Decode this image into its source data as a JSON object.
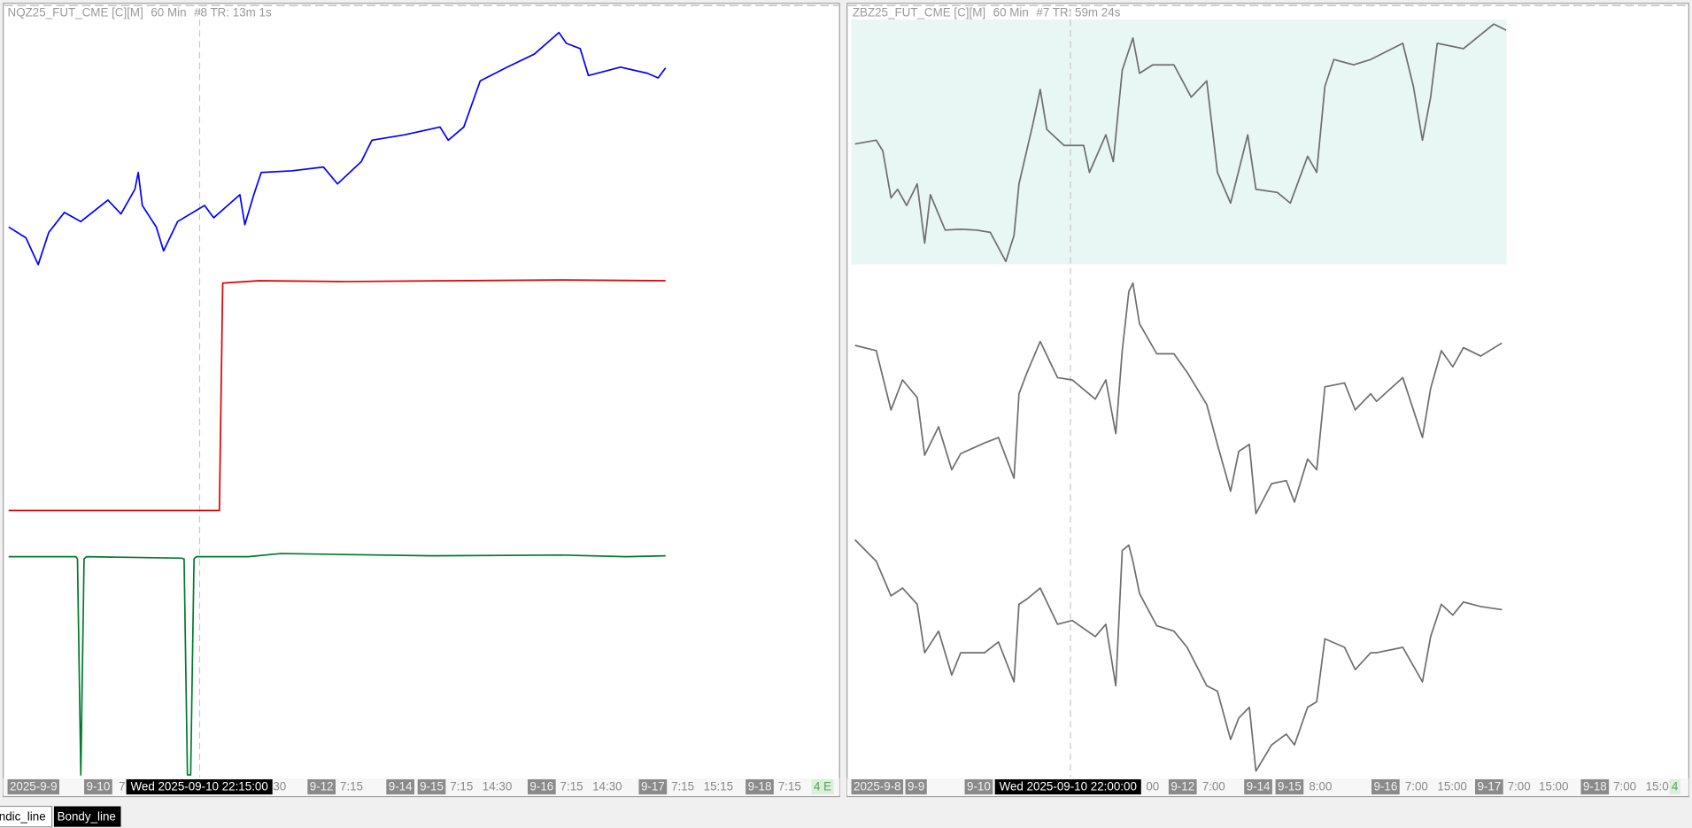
{
  "panels": [
    {
      "symbol": "NQZ25_FUT_CME [C][M]",
      "interval": "60 Min",
      "status": "#8 TR: 13m 1s",
      "crosshair_label": "Wed 2025-09-10  22:15:00",
      "time_labels": [
        "2025-9-9",
        "9-10",
        "7",
        "30",
        "9-12",
        "7:15",
        "9-14",
        "9-15",
        "7:15",
        "14:30",
        "9-16",
        "7:15",
        "14:30",
        "9-17",
        "7:15",
        "15:15",
        "9-18",
        "7:15",
        "4 E"
      ],
      "xlim": [
        0,
        100
      ],
      "ylim": [
        0,
        100
      ],
      "series": [
        {
          "color": "#0000ff",
          "x": [
            0,
            2.1,
            3.6,
            4.9,
            6.8,
            8.8,
            12.1,
            13.7,
            15.4,
            15.8,
            16.3,
            18.0,
            18.9,
            20.6,
            23.9,
            25.0,
            28.2,
            28.8,
            29.9,
            30.8,
            34.5,
            38.4,
            40.1,
            43.0,
            44.3,
            48.3,
            52.6,
            53.6,
            55.5,
            57.5,
            60.8,
            64.1,
            67.1,
            68.0,
            69.7,
            70.7,
            74.6,
            77.9,
            79.2,
            80.1
          ],
          "values": [
            71.6,
            70.2,
            66.7,
            70.9,
            73.5,
            72.3,
            75.1,
            73.3,
            76.5,
            78.7,
            74.4,
            71.6,
            68.5,
            72.3,
            74.4,
            72.8,
            75.8,
            71.9,
            75.8,
            78.7,
            78.9,
            79.4,
            77.2,
            80.1,
            82.9,
            83.6,
            84.6,
            82.9,
            84.6,
            90.6,
            92.4,
            94.1,
            96.9,
            95.5,
            94.8,
            91.3,
            92.4,
            91.6,
            91.0,
            92.3
          ]
        },
        {
          "color": "#e00000",
          "x": [
            0,
            25.7,
            26.1,
            30.5,
            41.1,
            54.2,
            67.4,
            80.1
          ],
          "values": [
            34.7,
            34.7,
            64.3,
            64.6,
            64.5,
            64.6,
            64.7,
            64.6
          ]
        },
        {
          "color": "#007a2e",
          "x": [
            0,
            8.2,
            8.4,
            8.8,
            9.2,
            9.5,
            21.1,
            21.4,
            21.8,
            22.2,
            22.6,
            22.9,
            29.2,
            33.2,
            51.6,
            67.4,
            75.3,
            80.1
          ],
          "values": [
            28.7,
            28.7,
            28.4,
            0.3,
            28.4,
            28.7,
            28.5,
            28.4,
            0.3,
            0.3,
            28.4,
            28.7,
            28.7,
            29.1,
            28.8,
            28.9,
            28.7,
            28.8
          ]
        }
      ]
    },
    {
      "symbol": "ZBZ25_FUT_CME [C][M]",
      "interval": "60 Min",
      "status": "#7 TR: 59m 24s",
      "crosshair_label": "Wed 2025-09-10  22:00:00",
      "time_labels": [
        "2025-9-8",
        "9-9",
        "9-10",
        "00",
        "9-12",
        "7:00",
        "9-14",
        "9-15",
        "8:00",
        "9-16",
        "7:00",
        "15:00",
        "9-17",
        "7:00",
        "15:00",
        "9-18",
        "7:00",
        "15:0",
        "4"
      ],
      "xlim": [
        0,
        100
      ],
      "ylim": [
        0,
        100
      ],
      "series": [
        {
          "color": "#6e6e6e",
          "x": [
            0.3,
            2.9,
            3.7,
            4.7,
            5.5,
            6.6,
            7.9,
            8.8,
            9.5,
            11.3,
            13.2,
            15.1,
            16.8,
            18.7,
            19.7,
            20.3,
            22.0,
            22.9,
            23.7,
            25.8,
            28.2,
            28.9,
            30.9,
            31.8,
            32.9,
            34.2,
            35.0,
            36.6,
            39.2,
            41.3,
            43.2,
            44.5,
            46.1,
            48.2,
            49.2,
            51.8,
            53.4,
            55.5,
            56.6,
            57.6,
            58.7,
            61.1,
            63.2,
            67.1,
            68.4,
            69.5,
            70.5,
            71.3,
            74.5,
            78.2,
            79.7
          ],
          "values": [
            82.4,
            82.9,
            81.5,
            75.4,
            76.5,
            74.4,
            77.2,
            69.5,
            75.8,
            71.2,
            71.3,
            71.2,
            70.9,
            67.1,
            70.5,
            77.2,
            85.0,
            89.5,
            84.3,
            82.2,
            82.2,
            78.7,
            83.6,
            80.1,
            92.0,
            96.2,
            91.6,
            92.7,
            92.7,
            88.5,
            90.6,
            78.7,
            74.7,
            83.6,
            76.5,
            76.1,
            74.7,
            80.8,
            78.7,
            89.9,
            93.4,
            92.7,
            93.4,
            95.5,
            89.9,
            82.9,
            88.5,
            95.5,
            94.8,
            98.0,
            97.2
          ]
        },
        {
          "color": "#6e6e6e",
          "x": [
            0.3,
            2.9,
            4.7,
            6.1,
            7.9,
            8.8,
            10.5,
            12.1,
            13.2,
            16.1,
            17.8,
            19.7,
            20.3,
            21.3,
            22.9,
            25.0,
            26.8,
            29.6,
            30.9,
            32.1,
            32.9,
            33.7,
            34.2,
            35.0,
            37.1,
            39.2,
            40.8,
            43.2,
            44.5,
            46.1,
            47.1,
            48.4,
            49.2,
            51.1,
            52.9,
            53.9,
            55.5,
            56.6,
            57.6,
            60.0,
            61.3,
            63.2,
            63.9,
            67.1,
            69.5,
            70.5,
            71.8,
            73.2,
            74.5,
            76.6,
            79.2
          ],
          "values": [
            56.2,
            55.5,
            47.8,
            51.7,
            49.4,
            41.9,
            45.6,
            40.0,
            42.1,
            43.5,
            44.2,
            38.9,
            49.9,
            52.7,
            56.7,
            52.0,
            51.7,
            49.2,
            51.7,
            44.7,
            55.5,
            63.2,
            64.3,
            59.0,
            55.1,
            55.1,
            52.7,
            48.5,
            43.3,
            37.2,
            42.4,
            43.3,
            34.3,
            38.2,
            38.6,
            35.8,
            41.4,
            40.0,
            50.8,
            51.3,
            47.8,
            49.9,
            48.9,
            52.0,
            44.2,
            50.6,
            55.5,
            53.4,
            55.9,
            54.8,
            56.5
          ]
        },
        {
          "color": "#6e6e6e",
          "x": [
            0.3,
            2.9,
            4.7,
            6.1,
            7.9,
            8.8,
            10.5,
            12.1,
            13.2,
            16.1,
            17.8,
            19.7,
            20.3,
            21.3,
            22.9,
            25.0,
            26.8,
            29.6,
            30.9,
            32.1,
            32.9,
            33.7,
            34.2,
            35.0,
            37.1,
            39.2,
            40.8,
            43.2,
            44.5,
            46.1,
            47.1,
            48.4,
            49.2,
            51.1,
            52.9,
            53.9,
            55.5,
            56.6,
            57.6,
            60.0,
            61.3,
            63.2,
            63.9,
            67.1,
            69.5,
            70.5,
            71.8,
            73.2,
            74.5,
            76.6,
            79.2
          ],
          "values": [
            30.9,
            28.1,
            23.6,
            24.6,
            22.5,
            16.2,
            19.0,
            13.3,
            16.2,
            16.2,
            17.6,
            12.4,
            22.5,
            23.2,
            24.6,
            19.9,
            20.4,
            18.3,
            19.9,
            11.9,
            29.5,
            30.2,
            28.1,
            23.9,
            19.7,
            19.0,
            16.9,
            11.9,
            11.2,
            4.9,
            7.7,
            9.1,
            0.8,
            4.2,
            5.6,
            4.2,
            9.1,
            9.8,
            18.0,
            16.9,
            14.0,
            16.2,
            16.2,
            16.9,
            12.4,
            18.3,
            22.5,
            21.1,
            22.8,
            22.2,
            21.8
          ]
        }
      ]
    }
  ],
  "tabs": [
    "ndic_line",
    "Bondy_line"
  ]
}
